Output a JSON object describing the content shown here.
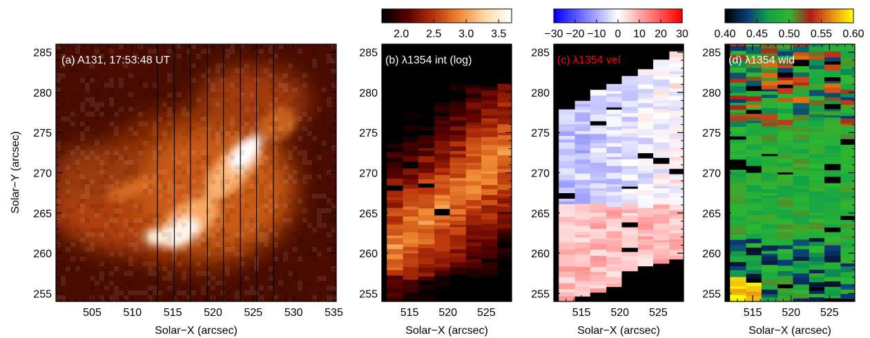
{
  "figure": {
    "ylabel": "Solar−Y (arcsec)",
    "xlabel": "Solar−X (arcsec)"
  },
  "chart_data": [
    {
      "type": "heatmap",
      "panel": "a",
      "title": "(a) A131, 17:53:48 UT",
      "title_color": "#ffffff",
      "xlim": [
        500.5,
        535.3
      ],
      "ylim": [
        254,
        286
      ],
      "xticks": [
        505,
        510,
        515,
        520,
        525,
        530,
        535
      ],
      "yticks": [
        255,
        260,
        265,
        270,
        275,
        280,
        285
      ],
      "xlabel": "Solar−X (arcsec)",
      "ylabel": "Solar−Y (arcsec)",
      "colormap": "sdoaia131",
      "slit_positions_x": [
        513.1,
        515.2,
        517.2,
        519.3,
        521.3,
        523.4,
        525.4,
        527.5
      ],
      "bright_features": [
        {
          "x": 516,
          "y": 263,
          "intensity": 1.0
        },
        {
          "x": 513,
          "y": 262,
          "intensity": 0.95
        },
        {
          "x": 524,
          "y": 272,
          "intensity": 1.0
        },
        {
          "x": 521.5,
          "y": 269,
          "intensity": 0.95
        },
        {
          "x": 518.5,
          "y": 265.5,
          "intensity": 0.85
        }
      ]
    },
    {
      "type": "heatmap",
      "panel": "b",
      "title": "(b) λ1354 int (log)",
      "title_color": "#ffffff",
      "xlim": [
        511.4,
        528.3
      ],
      "ylim": [
        254,
        286
      ],
      "xticks": [
        515,
        520,
        525
      ],
      "yticks": [
        255,
        260,
        265,
        270,
        275,
        280,
        285
      ],
      "xlabel": "Solar−X (arcsec)",
      "colorbar": {
        "ticks": [
          "2.0",
          "2.5",
          "3.0",
          "3.5"
        ],
        "range": [
          1.7,
          3.7
        ],
        "colors": [
          "#000000",
          "#5a0000",
          "#b8320a",
          "#ef8a32",
          "#ffd9a8",
          "#ffffff"
        ]
      }
    },
    {
      "type": "heatmap",
      "panel": "c",
      "title": "(c) λ1354 vel",
      "title_color": "#ff0000",
      "xlim": [
        511.4,
        528.3
      ],
      "ylim": [
        254,
        286
      ],
      "xticks": [
        515,
        520,
        525
      ],
      "yticks": [
        255,
        260,
        265,
        270,
        275,
        280,
        285
      ],
      "xlabel": "Solar−X (arcsec)",
      "colorbar": {
        "ticks": [
          "−30",
          "−20",
          "−10",
          "0",
          "10",
          "20",
          "30"
        ],
        "range": [
          -30,
          30
        ],
        "colors": [
          "#0000ff",
          "#ffffff",
          "#ff0000"
        ]
      }
    },
    {
      "type": "heatmap",
      "panel": "d",
      "title": "(d) λ1354 wid",
      "title_color": "#ffffff",
      "xlim": [
        511.4,
        528.3
      ],
      "ylim": [
        254,
        286
      ],
      "xticks": [
        515,
        520,
        525
      ],
      "yticks": [
        255,
        260,
        265,
        270,
        275,
        280,
        285
      ],
      "xlabel": "Solar−X (arcsec)",
      "colorbar": {
        "ticks": [
          "0.40",
          "0.45",
          "0.50",
          "0.55",
          "0.60"
        ],
        "range": [
          0.4,
          0.6
        ],
        "colors": [
          "#000000",
          "#0b3a7a",
          "#12a04a",
          "#2fb82f",
          "#b21a1a",
          "#e98a14",
          "#ffff00"
        ]
      }
    }
  ]
}
